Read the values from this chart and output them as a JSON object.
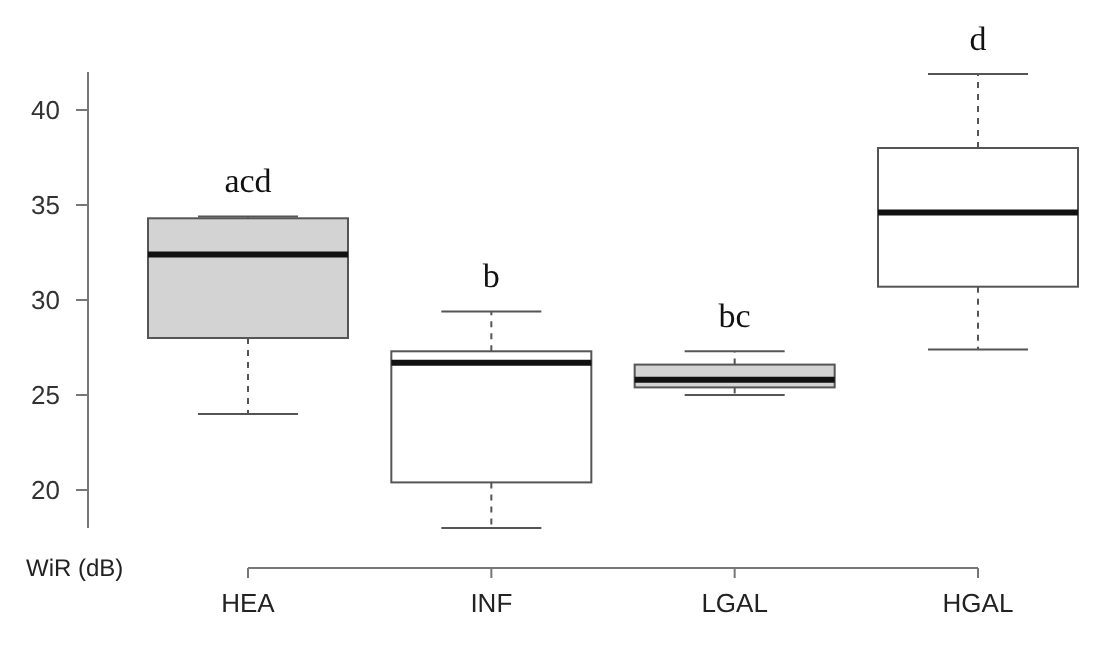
{
  "chart_data": {
    "type": "box",
    "ylabel": "WiR (dB)",
    "categories": [
      "HEA",
      "INF",
      "LGAL",
      "HGAL"
    ],
    "colors": [
      "#d3d3d3",
      "#ffffff",
      "#d3d3d3",
      "#ffffff"
    ],
    "boxes": [
      {
        "low": 24,
        "q1": 28,
        "median": 32.4,
        "q3": 34.3,
        "high": 34.4
      },
      {
        "low": 18,
        "q1": 20.4,
        "median": 26.7,
        "q3": 27.3,
        "high": 29.4
      },
      {
        "low": 25,
        "q1": 25.4,
        "median": 25.8,
        "q3": 26.6,
        "high": 27.3
      },
      {
        "low": 27.4,
        "q1": 30.7,
        "median": 34.6,
        "q3": 38,
        "high": 41.9
      }
    ],
    "ylim": [
      18,
      42
    ],
    "yticks": [
      20,
      25,
      30,
      35,
      40
    ],
    "grid": false,
    "annotations": [
      "acd",
      "b",
      "bc",
      "d"
    ]
  }
}
